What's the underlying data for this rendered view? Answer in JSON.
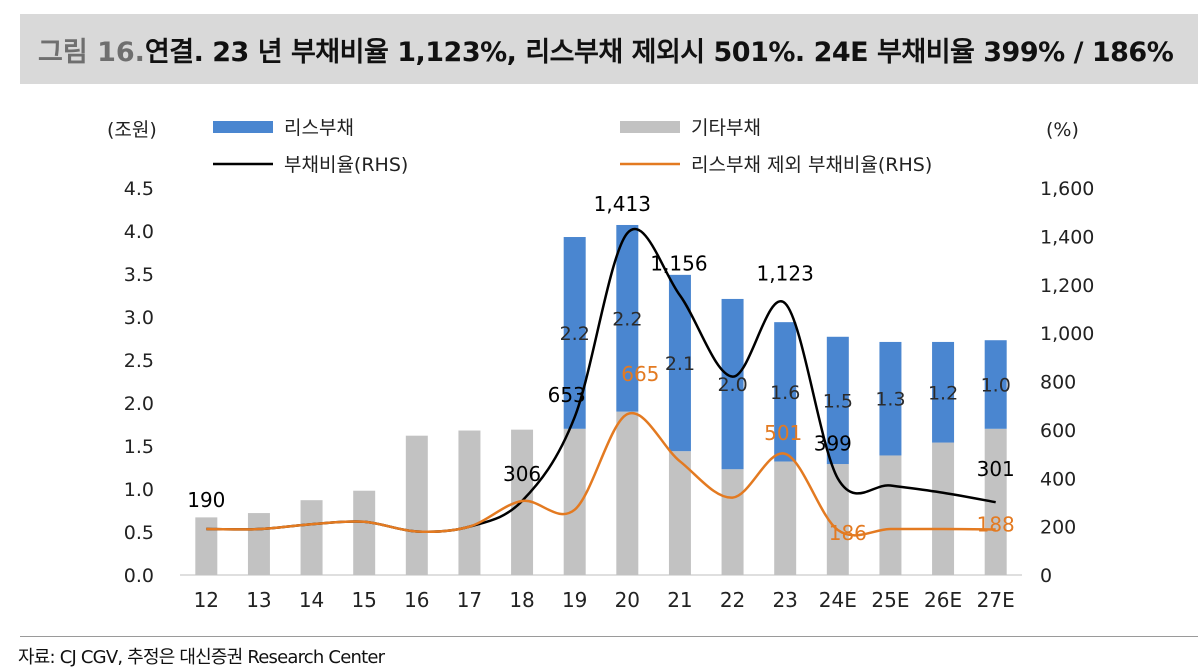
{
  "header": {
    "figure_label": "그림 16.",
    "title": "연결. 23 년 부채비율 1,123%, 리스부채 제외시 501%. 24E 부채비율 399% / 186%"
  },
  "source": "자료: CJ CGV, 추정은 대신증권 Research Center",
  "colors": {
    "lease_bar": "#4a86d0",
    "other_bar": "#c2c2c2",
    "debt_ratio_line": "#000000",
    "debt_ratio_ex_lease_line": "#e37a21",
    "label_black": "#000000",
    "label_orange": "#e37a21",
    "label_dark": "#2b2b2b"
  },
  "chart_data": {
    "type": "bar",
    "stacked": true,
    "categories": [
      "12",
      "13",
      "14",
      "15",
      "16",
      "17",
      "18",
      "19",
      "20",
      "21",
      "22",
      "23",
      "24E",
      "25E",
      "26E",
      "27E"
    ],
    "left_axis": {
      "unit": "(조원)",
      "ylim": [
        0,
        4.5
      ],
      "ticks": [
        "0.0",
        "0.5",
        "1.0",
        "1.5",
        "2.0",
        "2.5",
        "3.0",
        "3.5",
        "4.0",
        "4.5"
      ]
    },
    "right_axis": {
      "unit": "(%)",
      "ylim": [
        0,
        1600
      ],
      "ticks": [
        "0",
        "200",
        "400",
        "600",
        "800",
        "1,000",
        "1,200",
        "1,400",
        "1,600"
      ]
    },
    "legend": {
      "lease": "리스부채",
      "other": "기타부채",
      "ratio": "부채비율(RHS)",
      "ratio_ex": "리스부채 제외 부채비율(RHS)"
    },
    "series": [
      {
        "name": "기타부채",
        "axis": "left",
        "kind": "bar",
        "values": [
          0.67,
          0.72,
          0.87,
          0.98,
          1.62,
          1.68,
          1.69,
          1.7,
          1.9,
          1.44,
          1.23,
          1.32,
          1.29,
          1.39,
          1.54,
          1.7
        ]
      },
      {
        "name": "리스부채",
        "axis": "left",
        "kind": "bar",
        "values": [
          0,
          0,
          0,
          0,
          0,
          0,
          0,
          2.23,
          2.17,
          2.05,
          1.98,
          1.62,
          1.48,
          1.32,
          1.17,
          1.03
        ],
        "labels": [
          "",
          "",
          "",
          "",
          "",
          "",
          "",
          "2.2",
          "2.2",
          "2.1",
          "2.0",
          "1.6",
          "1.5",
          "1.3",
          "1.2",
          "1.0"
        ]
      },
      {
        "name": "부채비율(RHS)",
        "axis": "right",
        "kind": "line",
        "values": [
          190,
          190,
          210,
          220,
          180,
          200,
          306,
          653,
          1413,
          1156,
          820,
          1123,
          399,
          370,
          340,
          301
        ]
      },
      {
        "name": "리스부채 제외 부채비율(RHS)",
        "axis": "right",
        "kind": "line",
        "values": [
          190,
          190,
          210,
          220,
          180,
          200,
          306,
          270,
          665,
          470,
          320,
          501,
          186,
          190,
          190,
          188
        ]
      }
    ],
    "point_labels": [
      {
        "text": "190",
        "series": "ratio",
        "index": 0,
        "color": "label_black"
      },
      {
        "text": "306",
        "series": "ratio",
        "index": 6,
        "color": "label_black"
      },
      {
        "text": "653",
        "series": "ratio",
        "index": 7,
        "color": "label_black"
      },
      {
        "text": "1,413",
        "series": "ratio",
        "index": 8,
        "color": "label_black"
      },
      {
        "text": "1,156",
        "series": "ratio",
        "index": 9,
        "color": "label_black"
      },
      {
        "text": "1,123",
        "series": "ratio",
        "index": 11,
        "color": "label_black"
      },
      {
        "text": "399",
        "series": "ratio",
        "index": 12,
        "color": "label_black"
      },
      {
        "text": "301",
        "series": "ratio",
        "index": 15,
        "color": "label_black"
      },
      {
        "text": "665",
        "series": "ratio_ex",
        "index": 8,
        "color": "label_orange"
      },
      {
        "text": "501",
        "series": "ratio_ex",
        "index": 11,
        "color": "label_orange"
      },
      {
        "text": "186",
        "series": "ratio_ex",
        "index": 12,
        "color": "label_orange"
      },
      {
        "text": "188",
        "series": "ratio_ex",
        "index": 15,
        "color": "label_orange"
      }
    ]
  }
}
